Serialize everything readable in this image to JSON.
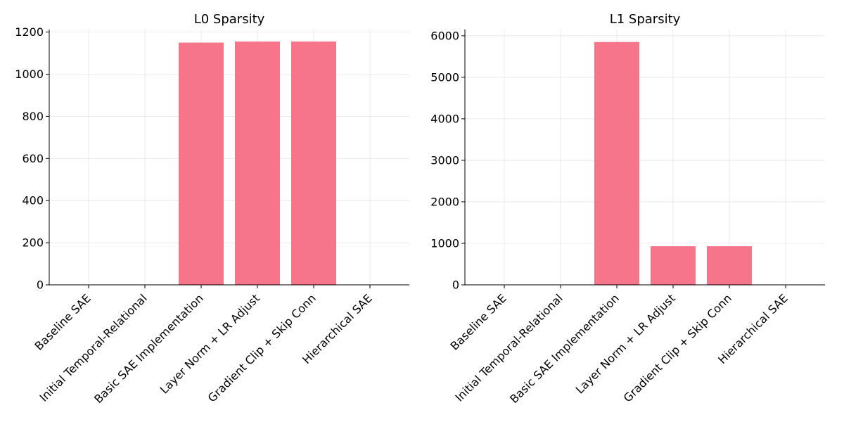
{
  "chart_data": [
    {
      "type": "bar",
      "title": "L0 Sparsity",
      "xlabel": "",
      "ylabel": "",
      "categories": [
        "Baseline SAE",
        "Initial Temporal-Relational",
        "Basic SAE Implementation",
        "Layer Norm + LR Adjust",
        "Gradient Clip + Skip Conn",
        "Hierarchical SAE"
      ],
      "values": [
        0,
        0,
        1150,
        1155,
        1155,
        0
      ],
      "ylim": [
        0,
        1212
      ],
      "yticks": [
        0,
        200,
        400,
        600,
        800,
        1000,
        1200
      ],
      "grid": true,
      "bar_color": "#f7758b"
    },
    {
      "type": "bar",
      "title": "L1 Sparsity",
      "xlabel": "",
      "ylabel": "",
      "categories": [
        "Baseline SAE",
        "Initial Temporal-Relational",
        "Basic SAE Implementation",
        "Layer Norm + LR Adjust",
        "Gradient Clip + Skip Conn",
        "Hierarchical SAE"
      ],
      "values": [
        0,
        0,
        5850,
        930,
        930,
        0
      ],
      "ylim": [
        0,
        6150
      ],
      "yticks": [
        0,
        1000,
        2000,
        3000,
        4000,
        5000,
        6000
      ],
      "grid": true,
      "bar_color": "#f7758b"
    }
  ]
}
